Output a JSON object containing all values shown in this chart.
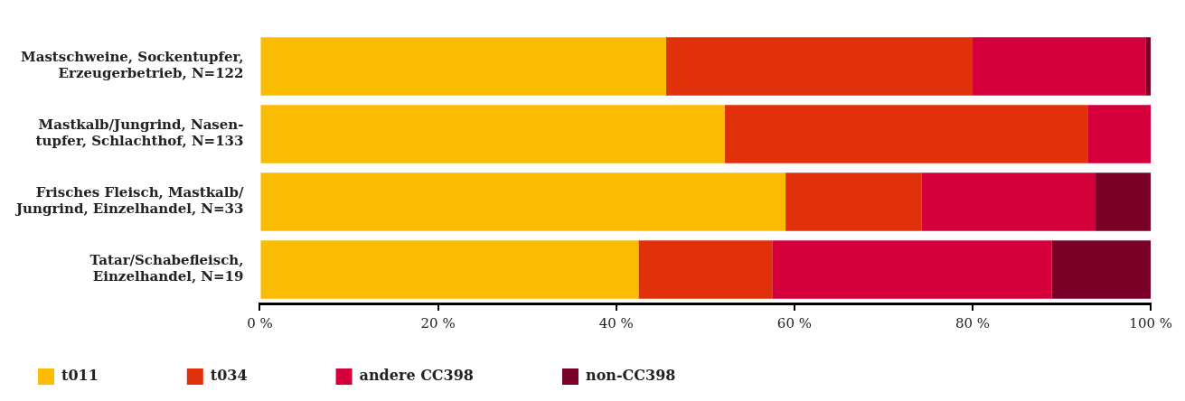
{
  "chart_data": {
    "type": "bar",
    "orientation": "horizontal",
    "stacked": true,
    "categories": [
      "Mastschweine, Sockentupfer,\nErzeugerbetrieb, N=122",
      "Mastkalb/Jungrind, Nasen-\ntupfer, Schlachthof, N=133",
      "Frisches Fleisch, Mastkalb/\nJungrind, Einzelhandel, N=33",
      "Tatar/Schabefleisch,\nEinzelhandel, N=19"
    ],
    "series": [
      {
        "name": "t011",
        "color": "#f9bc00",
        "values": [
          45.6,
          52.2,
          59.0,
          42.5
        ]
      },
      {
        "name": "t034",
        "color": "#e0310a",
        "values": [
          34.4,
          40.7,
          15.3,
          15.0
        ]
      },
      {
        "name": "andere CC398",
        "color": "#d5003b",
        "values": [
          19.4,
          7.1,
          19.5,
          31.4
        ]
      },
      {
        "name": "non-CC398",
        "color": "#7a0028",
        "values": [
          0.6,
          0,
          6.2,
          11.1
        ]
      }
    ],
    "xlim": [
      0,
      100
    ],
    "xticks": [
      {
        "value": 0,
        "label": "0 %"
      },
      {
        "value": 20,
        "label": "20 %"
      },
      {
        "value": 40,
        "label": "40 %"
      },
      {
        "value": 60,
        "label": "60 %"
      },
      {
        "value": 80,
        "label": "80 %"
      },
      {
        "value": 100,
        "label": "100 %"
      }
    ],
    "grid": false,
    "legend": "bottom"
  }
}
